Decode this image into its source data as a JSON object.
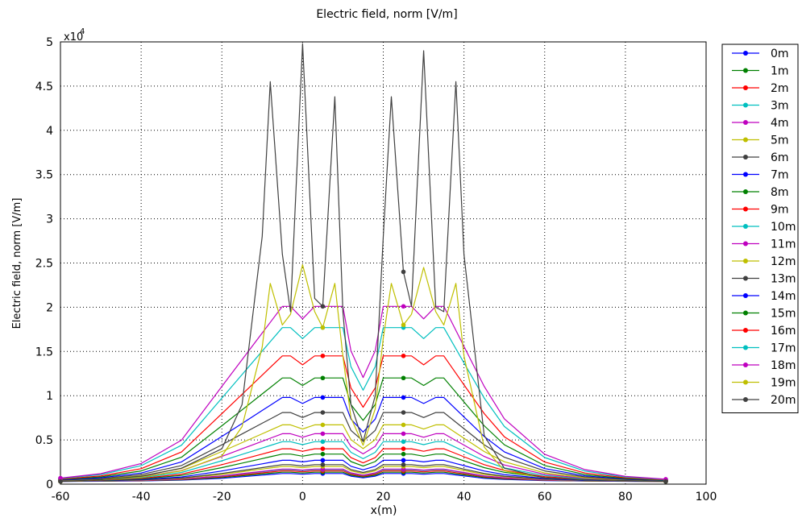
{
  "chart_data": {
    "type": "line",
    "title": "Electric field, norm [V/m]",
    "xlabel": "x(m)",
    "ylabel": "Electric field, norm [V/m]",
    "y_multiplier": "x10",
    "y_multiplier_exp": "4",
    "xlim": [
      -60,
      100
    ],
    "ylim": [
      0,
      5
    ],
    "x_ticks": [
      "-60",
      "-40",
      "-20",
      "0",
      "20",
      "40",
      "60",
      "80",
      "100"
    ],
    "y_ticks": [
      "0",
      "0.5",
      "1",
      "1.5",
      "2",
      "2.5",
      "3",
      "3.5",
      "4",
      "4.5",
      "5"
    ],
    "grid": true,
    "legend_position": "outside-right",
    "series_names": [
      "0m",
      "1m",
      "2m",
      "3m",
      "4m",
      "5m",
      "6m",
      "7m",
      "8m",
      "9m",
      "10m",
      "11m",
      "12m",
      "13m",
      "14m",
      "15m",
      "16m",
      "17m",
      "18m",
      "19m",
      "20m"
    ],
    "series_colors": [
      "#0000ff",
      "#008000",
      "#ff0000",
      "#00bfbf",
      "#bf00bf",
      "#bfbf00",
      "#404040",
      "#0000ff",
      "#008000",
      "#ff0000",
      "#00bfbf",
      "#bf00bf",
      "#bfbf00",
      "#404040",
      "#0000ff",
      "#008000",
      "#ff0000",
      "#00bfbf",
      "#bf00bf",
      "#bfbf00",
      "#404040"
    ],
    "x": [
      -60,
      -50,
      -40,
      -30,
      -20,
      -15,
      -10,
      -8,
      -5,
      -3,
      0,
      3,
      5,
      8,
      10,
      12,
      15,
      18,
      20,
      22,
      25,
      27,
      30,
      33,
      35,
      38,
      40,
      45,
      50,
      60,
      70,
      80,
      90
    ],
    "envelope_levels_x1e4": [
      0.17,
      0.2,
      0.22,
      0.27,
      0.34,
      0.4,
      0.48,
      0.57,
      0.67,
      0.81,
      0.98,
      1.2,
      1.45,
      1.77,
      2.01
    ],
    "peak_series_x1e4": {
      "19m": [
        0.03,
        0.05,
        0.08,
        0.15,
        0.32,
        0.65,
        1.55,
        2.27,
        1.8,
        1.92,
        2.48,
        1.95,
        1.77,
        2.27,
        1.45,
        0.75,
        0.44,
        0.85,
        1.65,
        2.27,
        1.8,
        1.92,
        2.45,
        1.95,
        1.8,
        2.27,
        1.45,
        0.42,
        0.15,
        0.07,
        0.05,
        0.04,
        0.03
      ],
      "20m": [
        0.03,
        0.05,
        0.09,
        0.18,
        0.4,
        0.9,
        2.8,
        4.55,
        2.6,
        1.95,
        4.98,
        2.1,
        2.01,
        4.38,
        1.95,
        0.9,
        0.48,
        1.0,
        2.8,
        4.38,
        2.4,
        2.01,
        4.9,
        2.0,
        1.95,
        4.55,
        2.6,
        0.55,
        0.18,
        0.07,
        0.05,
        0.04,
        0.03
      ]
    }
  }
}
